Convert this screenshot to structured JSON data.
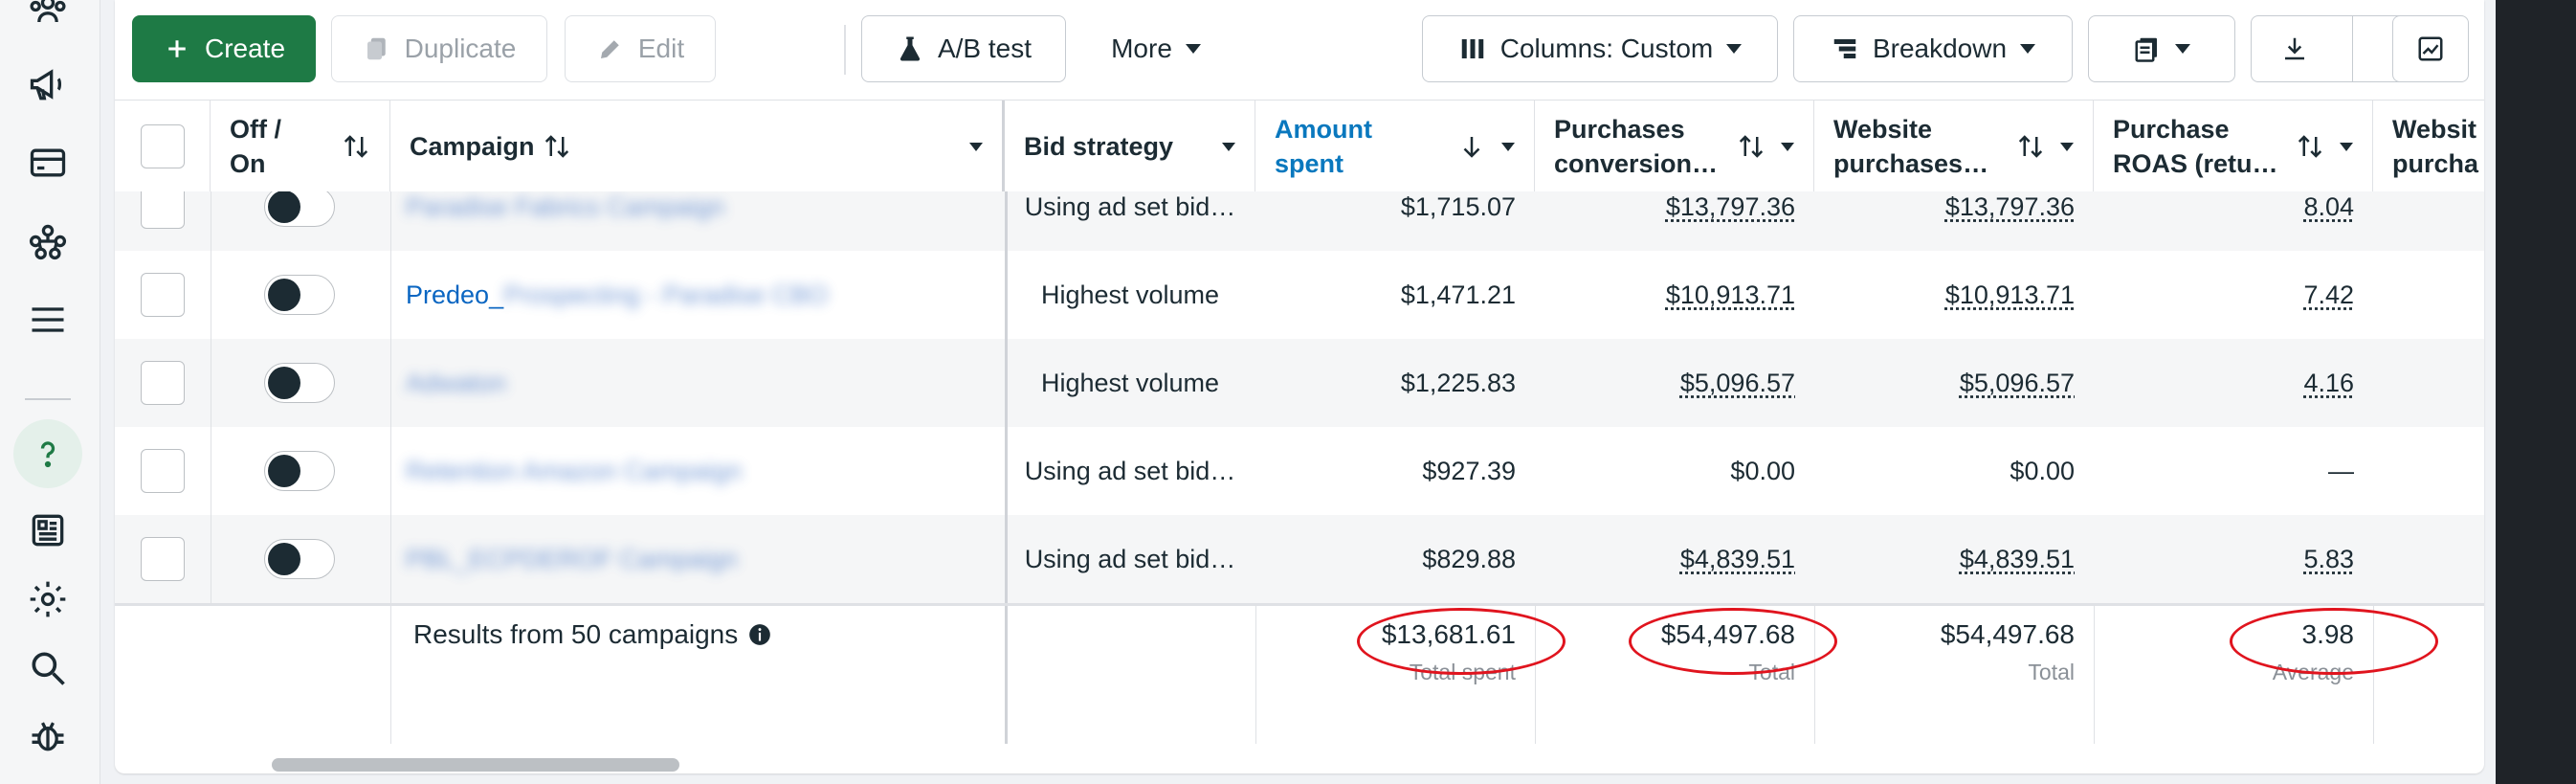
{
  "toolbar": {
    "create": "Create",
    "duplicate": "Duplicate",
    "edit": "Edit",
    "ab_test": "A/B test",
    "more": "More",
    "columns": "Columns: Custom",
    "breakdown": "Breakdown"
  },
  "headers": {
    "off_on_1": "Off /",
    "off_on_2": "On",
    "campaign": "Campaign",
    "bid_strategy": "Bid strategy",
    "amount_spent_1": "Amount",
    "amount_spent_2": "spent",
    "purch_conv_1": "Purchases",
    "purch_conv_2": "conversion…",
    "web_purch_1": "Website",
    "web_purch_2": "purchases…",
    "roas_1": "Purchase",
    "roas_2": "ROAS (retu…",
    "web2_1": "Websit",
    "web2_2": "purcha"
  },
  "rows": [
    {
      "campaign": "Paradise Fabrics Campaign",
      "bid": "Using ad set bid…",
      "spent": "$1,715.07",
      "conv": "$13,797.36",
      "web": "$13,797.36",
      "roas": "8.04"
    },
    {
      "campaign_visible": "Predeo_",
      "campaign": "Prospecting - Paradise CBO",
      "bid": "Highest volume",
      "spent": "$1,471.21",
      "conv": "$10,913.71",
      "web": "$10,913.71",
      "roas": "7.42"
    },
    {
      "campaign": "Adwaton",
      "bid": "Highest volume",
      "spent": "$1,225.83",
      "conv": "$5,096.57",
      "web": "$5,096.57",
      "roas": "4.16"
    },
    {
      "campaign": "Retention Amazon Campaign",
      "bid": "Using ad set bid…",
      "spent": "$927.39",
      "conv": "$0.00",
      "web": "$0.00",
      "roas": "—"
    },
    {
      "campaign": "PBL_ECPDEROF Campaign",
      "bid": "Using ad set bid…",
      "spent": "$829.88",
      "conv": "$4,839.51",
      "web": "$4,839.51",
      "roas": "5.83"
    }
  ],
  "footer": {
    "results": "Results from 50 campaigns",
    "total_spent": "$13,681.61",
    "total_spent_label": "Total spent",
    "conv_total": "$54,497.68",
    "conv_total_label": "Total",
    "web_total": "$54,497.68",
    "web_total_label": "Total",
    "roas_avg": "3.98",
    "roas_avg_label": "Average"
  },
  "colors": {
    "create_green": "#1e7a45",
    "link_blue": "#0a78be",
    "annotation_red": "#e0141e"
  },
  "icons": [
    "people-icon",
    "megaphone-icon",
    "card-icon",
    "network-icon",
    "menu-icon",
    "help-icon",
    "news-icon",
    "gear-icon",
    "search-icon",
    "bug-icon"
  ]
}
